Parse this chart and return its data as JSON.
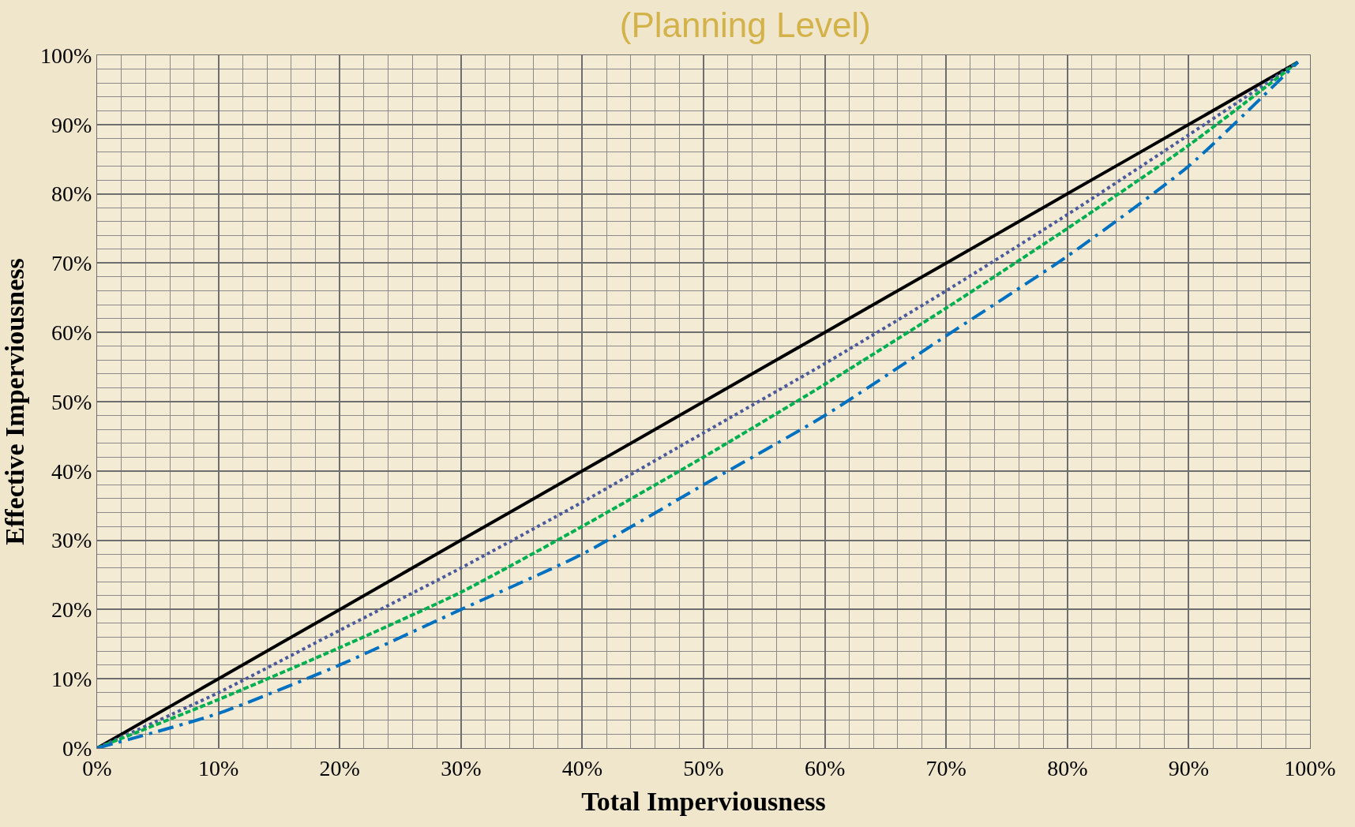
{
  "chart_data": {
    "type": "line",
    "title": "(Planning Level)",
    "xlabel": "Total Imperviousness",
    "ylabel": "Effective Imperviousness",
    "x": [
      0,
      10,
      20,
      30,
      40,
      50,
      60,
      70,
      80,
      90,
      99
    ],
    "series": [
      {
        "color": "#000000",
        "line_style": "solid",
        "values": [
          0,
          10,
          20,
          30,
          40,
          50,
          60,
          70,
          80,
          90,
          99
        ]
      },
      {
        "color": "#4a5a9c",
        "line_style": "dotted",
        "values": [
          0,
          8,
          17,
          26,
          35.5,
          45.5,
          55.5,
          66,
          77,
          88.5,
          99
        ]
      },
      {
        "color": "#00b050",
        "line_style": "dashed",
        "values": [
          0,
          7,
          14.5,
          22.5,
          32,
          42,
          52.5,
          63.5,
          75,
          87,
          99
        ]
      },
      {
        "color": "#0070c0",
        "line_style": "dashdot",
        "values": [
          0,
          5,
          12,
          20,
          28,
          38,
          48,
          59.5,
          71,
          84,
          99
        ]
      }
    ],
    "xlim": [
      0,
      100
    ],
    "ylim": [
      0,
      100
    ],
    "xticks": [
      {
        "value": 0,
        "label": "0%"
      },
      {
        "value": 10,
        "label": "10%"
      },
      {
        "value": 20,
        "label": "20%"
      },
      {
        "value": 30,
        "label": "30%"
      },
      {
        "value": 40,
        "label": "40%"
      },
      {
        "value": 50,
        "label": "50%"
      },
      {
        "value": 60,
        "label": "60%"
      },
      {
        "value": 70,
        "label": "70%"
      },
      {
        "value": 80,
        "label": "80%"
      },
      {
        "value": 90,
        "label": "90%"
      },
      {
        "value": 100,
        "label": "100%"
      }
    ],
    "yticks": [
      {
        "value": 0,
        "label": "0%"
      },
      {
        "value": 10,
        "label": "10%"
      },
      {
        "value": 20,
        "label": "20%"
      },
      {
        "value": 30,
        "label": "30%"
      },
      {
        "value": 40,
        "label": "40%"
      },
      {
        "value": 50,
        "label": "50%"
      },
      {
        "value": 60,
        "label": "60%"
      },
      {
        "value": 70,
        "label": "70%"
      },
      {
        "value": 80,
        "label": "80%"
      },
      {
        "value": 90,
        "label": "90%"
      },
      {
        "value": 100,
        "label": "100%"
      }
    ],
    "grid": true
  }
}
